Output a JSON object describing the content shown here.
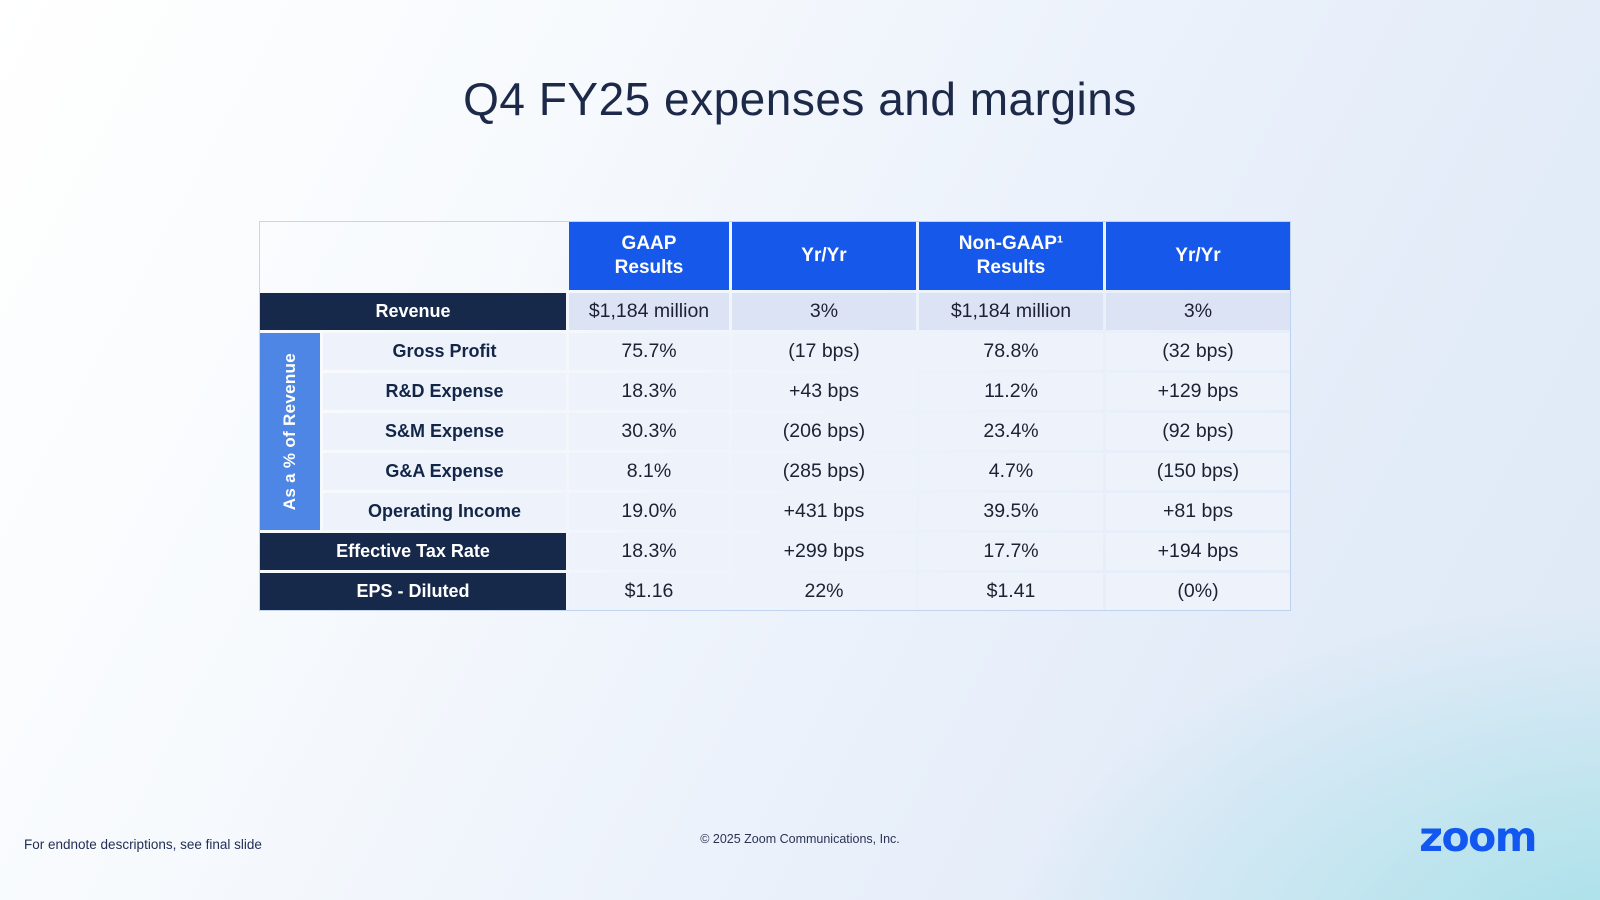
{
  "slide": {
    "title": "Q4 FY25 expenses and margins",
    "footer_left": "For endnote descriptions, see final slide",
    "footer_center": "© 2025 Zoom Communications, Inc.",
    "brand_logo_text": "zoom"
  },
  "colors": {
    "header_blue": "#1659ea",
    "dark_navy_row": "#16294b",
    "strip_blue": "#4d86e4",
    "revenue_row_bg": "#dbe3f5",
    "light_row_bg": "#edf2fb",
    "logo_blue": "#1257ef",
    "bg_teal_corner": "#a5e0e8"
  },
  "table": {
    "side_label": "As a % of Revenue",
    "columns": [
      {
        "line1": "GAAP",
        "line2": "Results"
      },
      {
        "line1": "Yr/Yr",
        "line2": ""
      },
      {
        "line1": "Non-GAAP¹",
        "line2": "Results"
      },
      {
        "line1": "Yr/Yr",
        "line2": ""
      }
    ],
    "rows": [
      {
        "label": "Revenue",
        "style": "dark",
        "values": [
          "$1,184 million",
          "3%",
          "$1,184 million",
          "3%"
        ]
      },
      {
        "label": "Gross Profit",
        "style": "light",
        "values": [
          "75.7%",
          "(17 bps)",
          "78.8%",
          "(32 bps)"
        ]
      },
      {
        "label": "R&D Expense",
        "style": "light",
        "values": [
          "18.3%",
          "+43 bps",
          "11.2%",
          "+129 bps"
        ]
      },
      {
        "label": "S&M Expense",
        "style": "light",
        "values": [
          "30.3%",
          "(206 bps)",
          "23.4%",
          "(92 bps)"
        ]
      },
      {
        "label": "G&A Expense",
        "style": "light",
        "values": [
          "8.1%",
          "(285 bps)",
          "4.7%",
          "(150 bps)"
        ]
      },
      {
        "label": "Operating Income",
        "style": "light",
        "values": [
          "19.0%",
          "+431 bps",
          "39.5%",
          "+81 bps"
        ]
      },
      {
        "label": "Effective Tax Rate",
        "style": "dark",
        "values": [
          "18.3%",
          "+299 bps",
          "17.7%",
          "+194 bps"
        ]
      },
      {
        "label": "EPS - Diluted",
        "style": "dark",
        "values": [
          "$1.16",
          "22%",
          "$1.41",
          "(0%)"
        ]
      }
    ]
  }
}
